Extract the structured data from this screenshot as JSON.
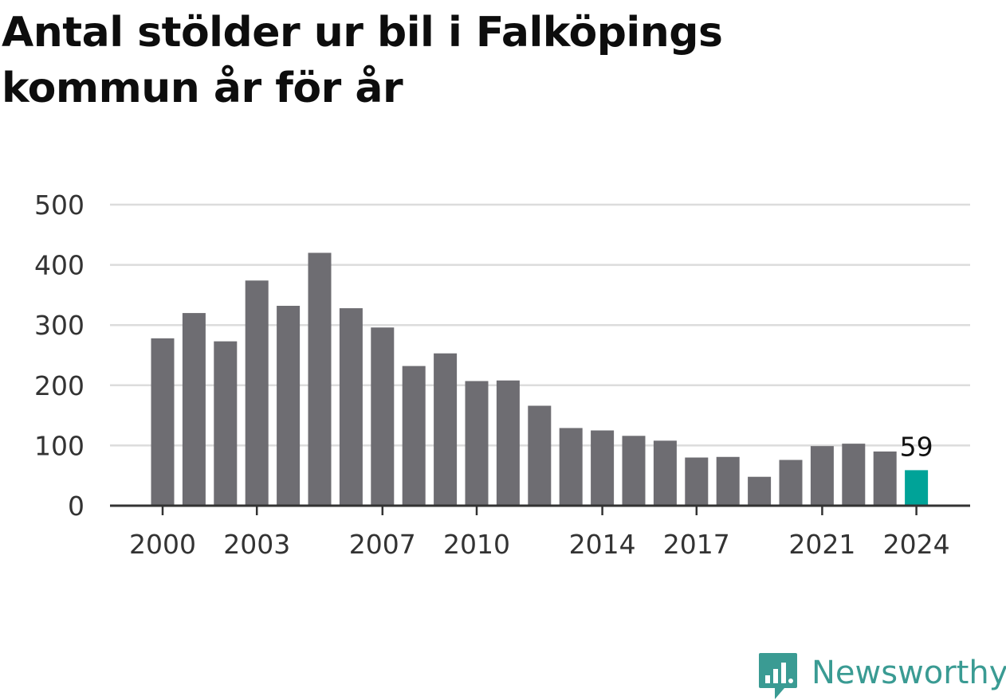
{
  "title": "Antal stölder ur bil i Falköpings kommun år för år",
  "colors": {
    "bar": "#6e6d72",
    "highlight": "#00a398",
    "grid": "#dcdcdc",
    "axis": "#333333",
    "brand": "#3a9b93"
  },
  "brand": {
    "name": "Newsworthy",
    "icon": "newsworthy-logo-icon"
  },
  "chart_data": {
    "type": "bar",
    "title": "Antal stölder ur bil i Falköpings kommun år för år",
    "xlabel": "",
    "ylabel": "",
    "ylim": [
      0,
      500
    ],
    "yticks": [
      "0",
      "100",
      "200",
      "300",
      "400",
      "500"
    ],
    "grid": true,
    "categories": [
      "2000",
      "2001",
      "2002",
      "2003",
      "2004",
      "2005",
      "2006",
      "2007",
      "2008",
      "2009",
      "2010",
      "2011",
      "2012",
      "2013",
      "2014",
      "2015",
      "2016",
      "2017",
      "2018",
      "2019",
      "2020",
      "2021",
      "2022",
      "2023",
      "2024"
    ],
    "xtick_labels": [
      "2000",
      "2003",
      "2007",
      "2010",
      "2014",
      "2017",
      "2021",
      "2024"
    ],
    "values": [
      278,
      320,
      273,
      374,
      332,
      420,
      328,
      296,
      232,
      253,
      207,
      208,
      166,
      129,
      125,
      116,
      108,
      80,
      81,
      48,
      76,
      99,
      103,
      90,
      59
    ],
    "highlight_index": 24,
    "data_labels": [
      {
        "category": "2024",
        "text": "59"
      }
    ]
  }
}
